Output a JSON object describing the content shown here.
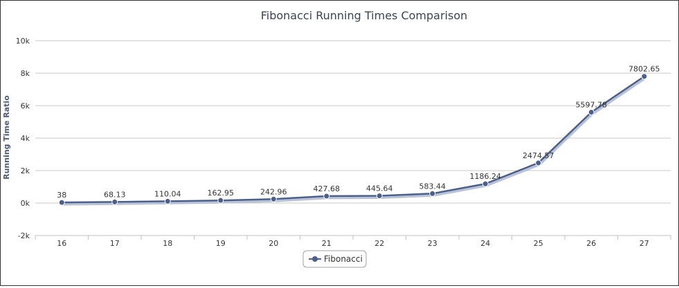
{
  "chart_data": {
    "type": "line",
    "title": "Fibonacci Running Times Comparison",
    "xlabel": "",
    "ylabel": "Running Time Ratio",
    "categories": [
      "16",
      "17",
      "18",
      "19",
      "20",
      "21",
      "22",
      "23",
      "24",
      "25",
      "26",
      "27"
    ],
    "series": [
      {
        "name": "Fibonacci",
        "values": [
          38,
          68.13,
          110.04,
          162.95,
          242.96,
          427.68,
          445.64,
          583.44,
          1186.24,
          2474.57,
          5597.78,
          7802.65
        ],
        "labels": [
          "38",
          "68.13",
          "110.04",
          "162.95",
          "242.96",
          "427.68",
          "445.64",
          "583.44",
          "1186.24",
          "2474.57",
          "5597.78",
          "7802.65"
        ],
        "color": "#4b5f8c"
      }
    ],
    "ylim": [
      -2000,
      10000
    ],
    "yticks": [
      -2000,
      0,
      2000,
      4000,
      6000,
      8000,
      10000
    ],
    "ytick_labels": [
      "-2k",
      "0k",
      "2k",
      "4k",
      "6k",
      "8k",
      "10k"
    ],
    "grid": true,
    "legend_position": "bottom-center"
  }
}
